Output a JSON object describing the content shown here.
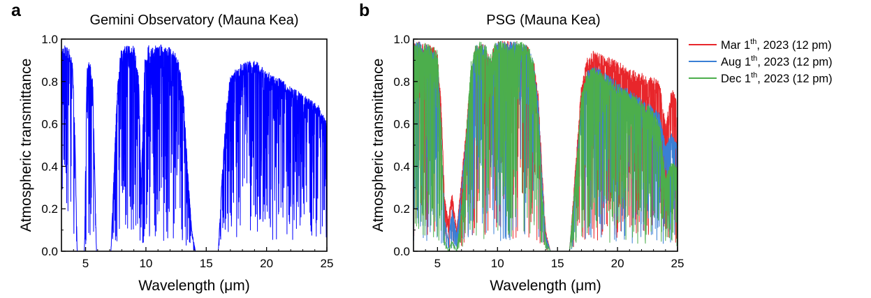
{
  "panels": [
    {
      "letter": "a",
      "title": "Gemini Observatory (Mauna Kea)"
    },
    {
      "letter": "b",
      "title": "PSG (Mauna Kea)"
    }
  ],
  "legend": [
    {
      "label": "Mar 1",
      "sup": "th",
      "rest": ", 2023 (12 pm)",
      "color": "#e8262b"
    },
    {
      "label": "Aug 1",
      "sup": "th",
      "rest": ", 2023 (12 pm)",
      "color": "#3a7fd5"
    },
    {
      "label": "Dec 1",
      "sup": "th",
      "rest": ", 2023 (12 pm)",
      "color": "#4cae4c"
    }
  ],
  "chart_data": [
    {
      "type": "line",
      "title": "Gemini Observatory (Mauna Kea)",
      "xlabel": "Wavelength (μm)",
      "ylabel": "Atmospheric transmittance",
      "xlim": [
        3,
        25
      ],
      "ylim": [
        0,
        1
      ],
      "xticks": [
        5,
        10,
        15,
        20,
        25
      ],
      "yticks": [
        0.0,
        0.2,
        0.4,
        0.6,
        0.8,
        1.0
      ],
      "grid": false,
      "series": [
        {
          "color": "#0000ff",
          "x": [
            3.0,
            3.3,
            3.6,
            3.9,
            4.1,
            4.3,
            4.5,
            4.9,
            5.1,
            5.3,
            5.6,
            5.9,
            6.5,
            7.1,
            7.3,
            7.6,
            7.9,
            8.2,
            8.6,
            9.0,
            9.4,
            9.6,
            9.9,
            10.2,
            10.7,
            11.2,
            11.7,
            12.2,
            12.7,
            13.1,
            13.5,
            13.8,
            14.1,
            14.5,
            15.0,
            15.6,
            16.0,
            16.3,
            16.7,
            17.0,
            17.5,
            18.0,
            18.5,
            19.0,
            19.5,
            20.0,
            20.5,
            21.0,
            21.5,
            22.0,
            22.5,
            23.0,
            23.5,
            24.0,
            24.5,
            25.0
          ],
          "y": [
            0.95,
            0.97,
            0.96,
            0.92,
            0.6,
            0.0,
            0.0,
            0.0,
            0.85,
            0.92,
            0.8,
            0.0,
            0.0,
            0.0,
            0.3,
            0.75,
            0.94,
            0.97,
            0.98,
            0.97,
            0.85,
            0.3,
            0.9,
            0.98,
            0.98,
            0.98,
            0.97,
            0.96,
            0.9,
            0.75,
            0.35,
            0.1,
            0.0,
            0.0,
            0.0,
            0.0,
            0.0,
            0.35,
            0.7,
            0.83,
            0.87,
            0.89,
            0.9,
            0.9,
            0.88,
            0.86,
            0.83,
            0.82,
            0.8,
            0.78,
            0.76,
            0.74,
            0.72,
            0.7,
            0.68,
            0.6
          ]
        }
      ]
    },
    {
      "type": "line",
      "title": "PSG (Mauna Kea)",
      "xlabel": "Wavelength (μm)",
      "ylabel": "Atmospheric transmittance",
      "xlim": [
        3,
        25
      ],
      "ylim": [
        0,
        1
      ],
      "xticks": [
        5,
        10,
        15,
        20,
        25
      ],
      "yticks": [
        0.0,
        0.2,
        0.4,
        0.6,
        0.8,
        1.0
      ],
      "grid": false,
      "legend_position": "right",
      "series": [
        {
          "name": "Mar 1th, 2023 (12 pm)",
          "color": "#e8262b",
          "x": [
            3.0,
            3.5,
            4.0,
            4.5,
            5.0,
            5.3,
            5.6,
            5.9,
            6.2,
            6.6,
            7.0,
            7.4,
            7.8,
            8.2,
            8.6,
            9.0,
            9.4,
            9.7,
            10.0,
            10.5,
            11.0,
            11.5,
            12.0,
            12.5,
            13.0,
            13.4,
            13.7,
            14.0,
            14.4,
            15.0,
            15.6,
            16.0,
            16.5,
            17.0,
            17.5,
            18.0,
            18.5,
            19.0,
            19.5,
            20.0,
            20.5,
            21.0,
            21.5,
            22.0,
            22.5,
            23.0,
            23.5,
            24.0,
            24.5,
            25.0
          ],
          "y": [
            0.98,
            0.99,
            0.98,
            0.97,
            0.95,
            0.7,
            0.25,
            0.15,
            0.28,
            0.1,
            0.35,
            0.6,
            0.85,
            0.97,
            0.98,
            0.97,
            0.9,
            0.97,
            0.99,
            0.99,
            0.99,
            0.99,
            0.98,
            0.97,
            0.92,
            0.75,
            0.4,
            0.1,
            0.0,
            0.0,
            0.0,
            0.0,
            0.4,
            0.8,
            0.92,
            0.95,
            0.93,
            0.92,
            0.91,
            0.9,
            0.88,
            0.86,
            0.85,
            0.84,
            0.83,
            0.82,
            0.8,
            0.6,
            0.77,
            0.72
          ]
        },
        {
          "name": "Aug 1th, 2023 (12 pm)",
          "color": "#3a7fd5",
          "x": [
            3.0,
            3.5,
            4.0,
            4.5,
            5.0,
            5.3,
            5.6,
            5.9,
            6.2,
            6.6,
            7.0,
            7.4,
            7.8,
            8.2,
            8.6,
            9.0,
            9.4,
            9.7,
            10.0,
            10.5,
            11.0,
            11.5,
            12.0,
            12.5,
            13.0,
            13.4,
            13.7,
            14.0,
            14.4,
            15.0,
            15.6,
            16.0,
            16.5,
            17.0,
            17.5,
            18.0,
            18.5,
            19.0,
            19.5,
            20.0,
            20.5,
            21.0,
            21.5,
            22.0,
            22.5,
            23.0,
            23.5,
            24.0,
            24.5,
            25.0
          ],
          "y": [
            0.98,
            0.99,
            0.98,
            0.96,
            0.93,
            0.6,
            0.15,
            0.05,
            0.2,
            0.08,
            0.3,
            0.55,
            0.85,
            0.97,
            0.98,
            0.97,
            0.9,
            0.97,
            0.99,
            0.99,
            0.99,
            0.99,
            0.98,
            0.97,
            0.9,
            0.7,
            0.35,
            0.08,
            0.0,
            0.0,
            0.0,
            0.0,
            0.35,
            0.72,
            0.85,
            0.88,
            0.86,
            0.84,
            0.82,
            0.8,
            0.78,
            0.76,
            0.74,
            0.72,
            0.7,
            0.68,
            0.65,
            0.5,
            0.56,
            0.5
          ]
        },
        {
          "name": "Dec 1th, 2023 (12 pm)",
          "color": "#4cae4c",
          "x": [
            3.0,
            3.5,
            4.0,
            4.5,
            5.0,
            5.3,
            5.6,
            5.9,
            6.2,
            6.6,
            7.0,
            7.4,
            7.8,
            8.2,
            8.6,
            9.0,
            9.4,
            9.7,
            10.0,
            10.5,
            11.0,
            11.5,
            12.0,
            12.5,
            13.0,
            13.4,
            13.7,
            14.0,
            14.4,
            15.0,
            15.6,
            16.0,
            16.5,
            17.0,
            17.5,
            18.0,
            18.5,
            19.0,
            19.5,
            20.0,
            20.5,
            21.0,
            21.5,
            22.0,
            22.5,
            23.0,
            23.5,
            24.0,
            24.5,
            25.0
          ],
          "y": [
            0.99,
            0.99,
            0.98,
            0.97,
            0.95,
            0.6,
            0.05,
            0.0,
            0.05,
            0.0,
            0.2,
            0.55,
            0.9,
            0.98,
            0.99,
            0.98,
            0.92,
            0.98,
            0.99,
            0.99,
            0.99,
            0.99,
            0.99,
            0.98,
            0.9,
            0.65,
            0.3,
            0.05,
            0.0,
            0.0,
            0.0,
            0.0,
            0.35,
            0.75,
            0.85,
            0.87,
            0.85,
            0.83,
            0.81,
            0.79,
            0.77,
            0.75,
            0.73,
            0.71,
            0.69,
            0.66,
            0.6,
            0.35,
            0.42,
            0.4
          ]
        }
      ]
    }
  ]
}
